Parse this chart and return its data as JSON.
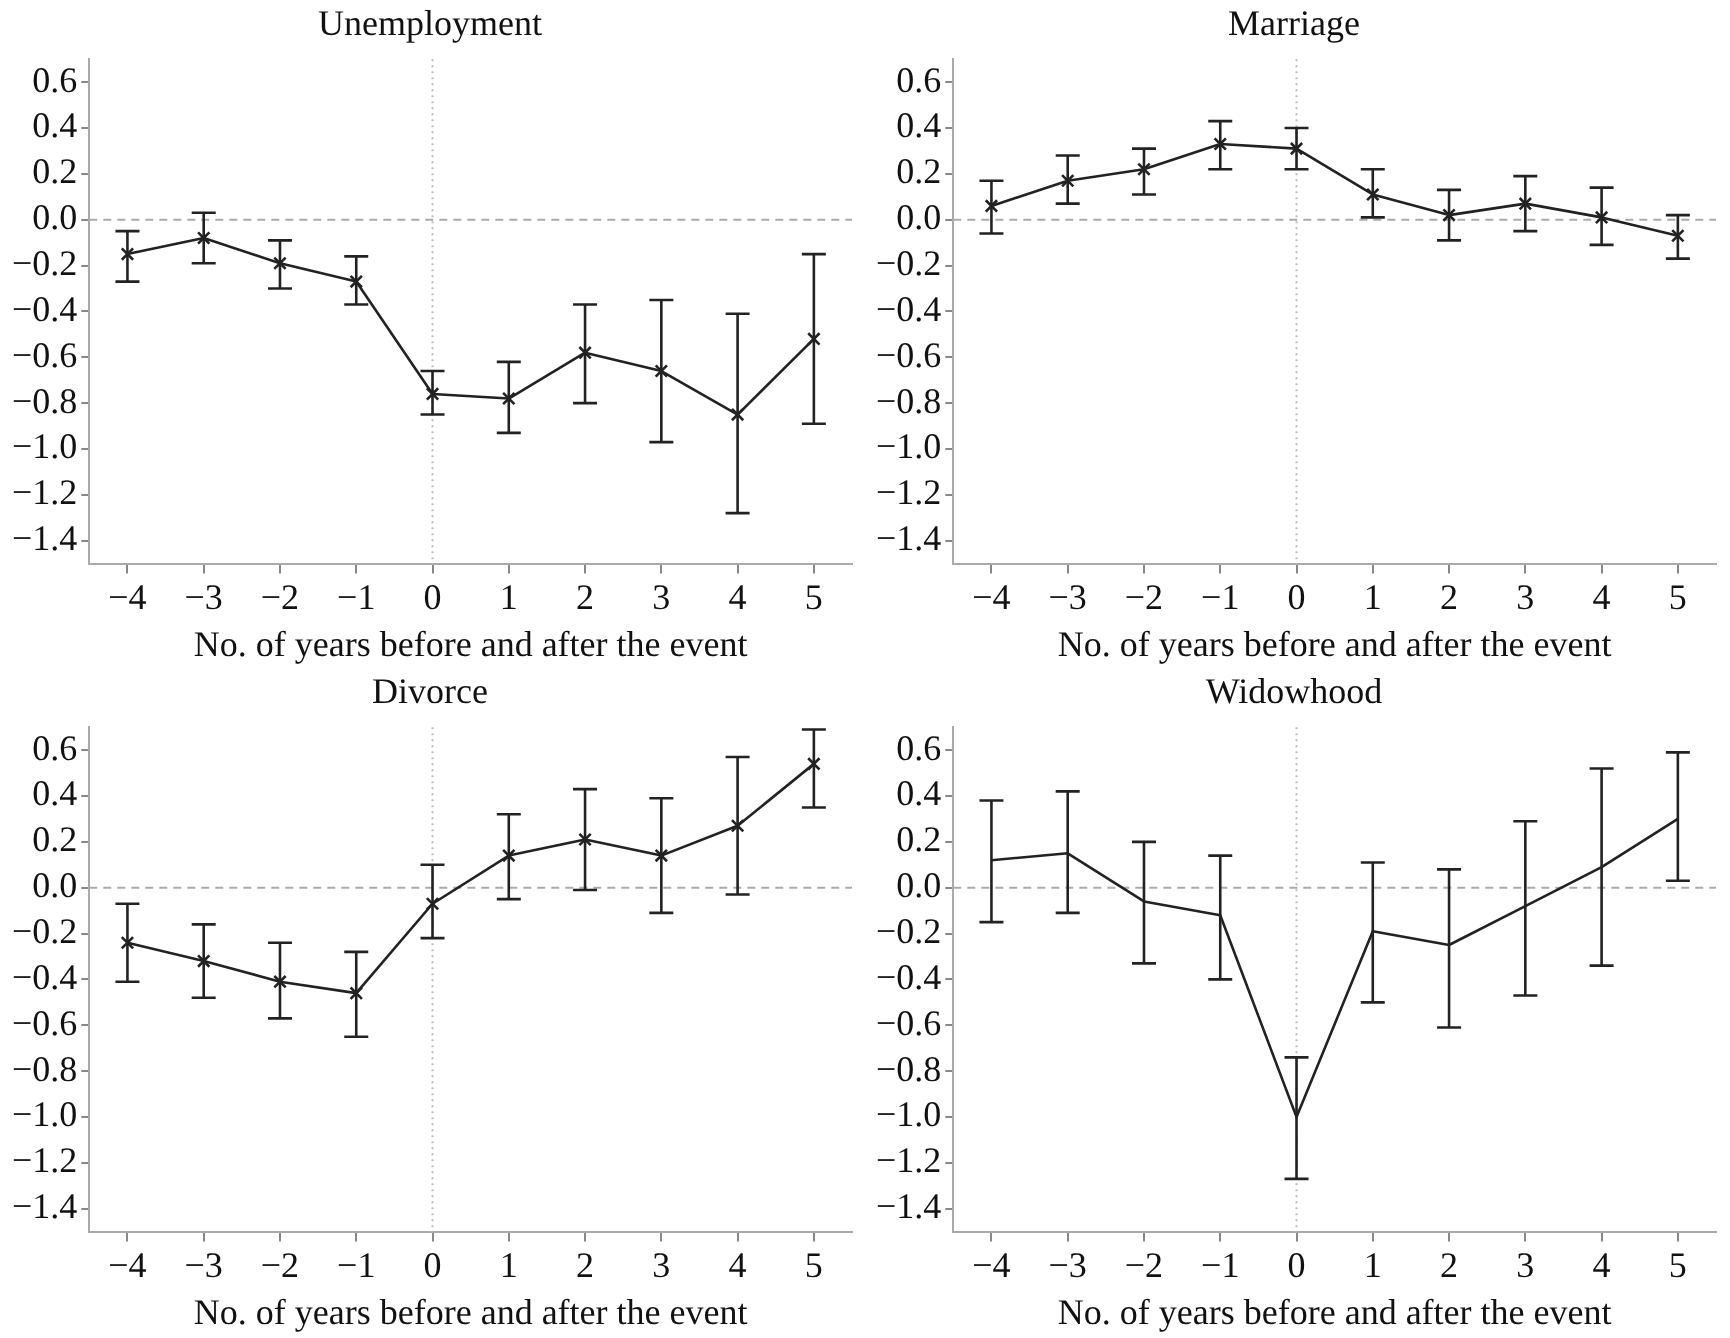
{
  "chart_data": [
    {
      "type": "line",
      "title": "Unemployment",
      "xlabel": "No. of years before and after the event",
      "x": [
        -4,
        -3,
        -2,
        -1,
        0,
        1,
        2,
        3,
        4,
        5
      ],
      "color": "#222222",
      "values": [
        -0.15,
        -0.08,
        -0.19,
        -0.27,
        -0.76,
        -0.78,
        -0.58,
        -0.66,
        -0.85,
        -0.52
      ],
      "errors": [
        [
          -0.27,
          -0.05
        ],
        [
          -0.19,
          0.03
        ],
        [
          -0.3,
          -0.09
        ],
        [
          -0.37,
          -0.16
        ],
        [
          -0.85,
          -0.66
        ],
        [
          -0.93,
          -0.62
        ],
        [
          -0.8,
          -0.37
        ],
        [
          -0.97,
          -0.35
        ],
        [
          -1.28,
          -0.41
        ],
        [
          -0.89,
          -0.15
        ]
      ],
      "marker": "cross",
      "xlim": [
        -4.5,
        5.5
      ],
      "xticks": [
        {
          "value": -4,
          "label": "−4"
        },
        {
          "value": -3,
          "label": "−3"
        },
        {
          "value": -2,
          "label": "−2"
        },
        {
          "value": -1,
          "label": "−1"
        },
        0,
        1,
        2,
        3,
        4,
        5
      ],
      "ylim": [
        -1.5,
        0.7
      ],
      "yticks": [
        {
          "value": 0.6,
          "label": "0.6"
        },
        {
          "value": 0.4,
          "label": "0.4"
        },
        {
          "value": 0.2,
          "label": "0.2"
        },
        {
          "value": 0,
          "label": "0.0"
        },
        {
          "value": -0.2,
          "label": "−0.2"
        },
        {
          "value": -0.4,
          "label": "−0.4"
        },
        {
          "value": -0.6,
          "label": "−0.6"
        },
        {
          "value": -0.8,
          "label": "−0.8"
        },
        {
          "value": -1,
          "label": "−1.0"
        },
        {
          "value": -1.2,
          "label": "−1.2"
        },
        {
          "value": -1.4,
          "label": "−1.4"
        }
      ],
      "ref_lines": [
        {
          "axis": "y",
          "value": 0,
          "line_style": "dashed",
          "color": "#aaaaaa"
        },
        {
          "axis": "x",
          "value": 0,
          "line_style": "dotted",
          "color": "#bbbbbb"
        }
      ],
      "grid": false,
      "legend": false
    },
    {
      "type": "line",
      "title": "Marriage",
      "xlabel": "No. of years before and after the event",
      "x": [
        -4,
        -3,
        -2,
        -1,
        0,
        1,
        2,
        3,
        4,
        5
      ],
      "color": "#222222",
      "values": [
        0.06,
        0.17,
        0.22,
        0.33,
        0.31,
        0.11,
        0.02,
        0.07,
        0.01,
        -0.07
      ],
      "errors": [
        [
          -0.06,
          0.17
        ],
        [
          0.07,
          0.28
        ],
        [
          0.11,
          0.31
        ],
        [
          0.22,
          0.43
        ],
        [
          0.22,
          0.4
        ],
        [
          0.01,
          0.22
        ],
        [
          -0.09,
          0.13
        ],
        [
          -0.05,
          0.19
        ],
        [
          -0.11,
          0.14
        ],
        [
          -0.17,
          0.02
        ]
      ],
      "marker": "cross",
      "xlim": [
        -4.5,
        5.5
      ],
      "xticks": [
        {
          "value": -4,
          "label": "−4"
        },
        {
          "value": -3,
          "label": "−3"
        },
        {
          "value": -2,
          "label": "−2"
        },
        {
          "value": -1,
          "label": "−1"
        },
        0,
        1,
        2,
        3,
        4,
        5
      ],
      "ylim": [
        -1.5,
        0.7
      ],
      "yticks": [
        {
          "value": 0.6,
          "label": "0.6"
        },
        {
          "value": 0.4,
          "label": "0.4"
        },
        {
          "value": 0.2,
          "label": "0.2"
        },
        {
          "value": 0,
          "label": "0.0"
        },
        {
          "value": -0.2,
          "label": "−0.2"
        },
        {
          "value": -0.4,
          "label": "−0.4"
        },
        {
          "value": -0.6,
          "label": "−0.6"
        },
        {
          "value": -0.8,
          "label": "−0.8"
        },
        {
          "value": -1,
          "label": "−1.0"
        },
        {
          "value": -1.2,
          "label": "−1.2"
        },
        {
          "value": -1.4,
          "label": "−1.4"
        }
      ],
      "ref_lines": [
        {
          "axis": "y",
          "value": 0,
          "line_style": "dashed",
          "color": "#aaaaaa"
        },
        {
          "axis": "x",
          "value": 0,
          "line_style": "dotted",
          "color": "#bbbbbb"
        }
      ],
      "grid": false,
      "legend": false
    },
    {
      "type": "line",
      "title": "Divorce",
      "xlabel": "No. of years before and after the event",
      "x": [
        -4,
        -3,
        -2,
        -1,
        0,
        1,
        2,
        3,
        4,
        5
      ],
      "color": "#222222",
      "values": [
        -0.24,
        -0.32,
        -0.41,
        -0.46,
        -0.07,
        0.14,
        0.21,
        0.14,
        0.27,
        0.54
      ],
      "errors": [
        [
          -0.41,
          -0.07
        ],
        [
          -0.48,
          -0.16
        ],
        [
          -0.57,
          -0.24
        ],
        [
          -0.65,
          -0.28
        ],
        [
          -0.22,
          0.1
        ],
        [
          -0.05,
          0.32
        ],
        [
          -0.01,
          0.43
        ],
        [
          -0.11,
          0.39
        ],
        [
          -0.03,
          0.57
        ],
        [
          0.35,
          0.69
        ]
      ],
      "marker": "cross",
      "xlim": [
        -4.5,
        5.5
      ],
      "xticks": [
        {
          "value": -4,
          "label": "−4"
        },
        {
          "value": -3,
          "label": "−3"
        },
        {
          "value": -2,
          "label": "−2"
        },
        {
          "value": -1,
          "label": "−1"
        },
        0,
        1,
        2,
        3,
        4,
        5
      ],
      "ylim": [
        -1.5,
        0.7
      ],
      "yticks": [
        {
          "value": 0.6,
          "label": "0.6"
        },
        {
          "value": 0.4,
          "label": "0.4"
        },
        {
          "value": 0.2,
          "label": "0.2"
        },
        {
          "value": 0,
          "label": "0.0"
        },
        {
          "value": -0.2,
          "label": "−0.2"
        },
        {
          "value": -0.4,
          "label": "−0.4"
        },
        {
          "value": -0.6,
          "label": "−0.6"
        },
        {
          "value": -0.8,
          "label": "−0.8"
        },
        {
          "value": -1,
          "label": "−1.0"
        },
        {
          "value": -1.2,
          "label": "−1.2"
        },
        {
          "value": -1.4,
          "label": "−1.4"
        }
      ],
      "ref_lines": [
        {
          "axis": "y",
          "value": 0,
          "line_style": "dashed",
          "color": "#aaaaaa"
        },
        {
          "axis": "x",
          "value": 0,
          "line_style": "dotted",
          "color": "#bbbbbb"
        }
      ],
      "grid": false,
      "legend": false
    },
    {
      "type": "line",
      "title": "Widowhood",
      "xlabel": "No. of years before and after the event",
      "x": [
        -4,
        -3,
        -2,
        -1,
        0,
        1,
        2,
        3,
        4,
        5
      ],
      "color": "#222222",
      "values": [
        0.12,
        0.15,
        -0.06,
        -0.12,
        -1.0,
        -0.19,
        -0.25,
        -0.08,
        0.09,
        0.3
      ],
      "errors": [
        [
          -0.15,
          0.38
        ],
        [
          -0.11,
          0.42
        ],
        [
          -0.33,
          0.2
        ],
        [
          -0.4,
          0.14
        ],
        [
          -1.27,
          -0.74
        ],
        [
          -0.5,
          0.11
        ],
        [
          -0.61,
          0.08
        ],
        [
          -0.47,
          0.29
        ],
        [
          -0.34,
          0.52
        ],
        [
          0.03,
          0.59
        ]
      ],
      "xlim": [
        -4.5,
        5.5
      ],
      "xticks": [
        {
          "value": -4,
          "label": "−4"
        },
        {
          "value": -3,
          "label": "−3"
        },
        {
          "value": -2,
          "label": "−2"
        },
        {
          "value": -1,
          "label": "−1"
        },
        0,
        1,
        2,
        3,
        4,
        5
      ],
      "ylim": [
        -1.5,
        0.7
      ],
      "yticks": [
        {
          "value": 0.6,
          "label": "0.6"
        },
        {
          "value": 0.4,
          "label": "0.4"
        },
        {
          "value": 0.2,
          "label": "0.2"
        },
        {
          "value": 0,
          "label": "0.0"
        },
        {
          "value": -0.2,
          "label": "−0.2"
        },
        {
          "value": -0.4,
          "label": "−0.4"
        },
        {
          "value": -0.6,
          "label": "−0.6"
        },
        {
          "value": -0.8,
          "label": "−0.8"
        },
        {
          "value": -1,
          "label": "−1.0"
        },
        {
          "value": -1.2,
          "label": "−1.2"
        },
        {
          "value": -1.4,
          "label": "−1.4"
        }
      ],
      "ref_lines": [
        {
          "axis": "y",
          "value": 0,
          "line_style": "dashed",
          "color": "#aaaaaa"
        },
        {
          "axis": "x",
          "value": 0,
          "line_style": "dotted",
          "color": "#bbbbbb"
        }
      ],
      "grid": false,
      "legend": false
    }
  ]
}
